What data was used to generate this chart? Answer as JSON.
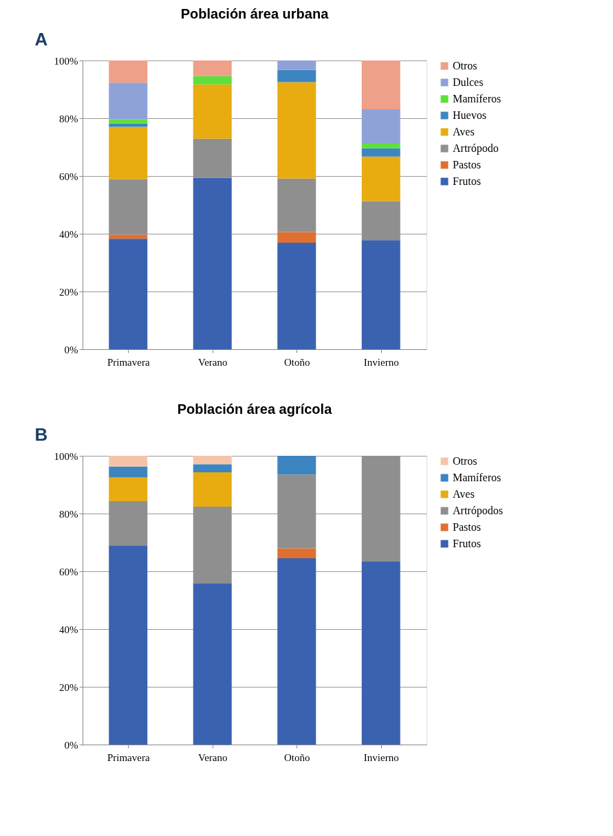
{
  "chart_data": [
    {
      "type": "bar",
      "stacked": true,
      "title": "Población área urbana",
      "annotations": [
        "A"
      ],
      "categories": [
        "Primavera",
        "Verano",
        "Otoño",
        "Invierno"
      ],
      "ylim": [
        0,
        100
      ],
      "yticks": [
        {
          "value": 0,
          "label": "0%"
        },
        {
          "value": 20,
          "label": "20%"
        },
        {
          "value": 40,
          "label": "40%"
        },
        {
          "value": 60,
          "label": "60%"
        },
        {
          "value": 80,
          "label": "80%"
        },
        {
          "value": 100,
          "label": "100%"
        }
      ],
      "grid": "y",
      "legend": "right",
      "series": [
        {
          "name": "Frutos",
          "color": "#3a62b0",
          "values": [
            38.3,
            59.4,
            36.9,
            37.8
          ]
        },
        {
          "name": "Pastos",
          "color": "#e07030",
          "values": [
            1.4,
            0,
            3.7,
            0
          ]
        },
        {
          "name": "Artrópodo",
          "color": "#8f8f8f",
          "values": [
            19.2,
            13.5,
            18.5,
            13.5
          ]
        },
        {
          "name": "Aves",
          "color": "#e8ac10",
          "values": [
            18.1,
            18.8,
            33.4,
            15.4
          ]
        },
        {
          "name": "Huevos",
          "color": "#3d85c0",
          "values": [
            1.2,
            0,
            4.2,
            2.9
          ]
        },
        {
          "name": "Mamíferos",
          "color": "#5ee03c",
          "values": [
            1.4,
            2.9,
            0,
            1.6
          ]
        },
        {
          "name": "Dulces",
          "color": "#8fa2d8",
          "values": [
            12.7,
            0,
            3.3,
            11.9
          ]
        },
        {
          "name": "Otros",
          "color": "#eea088",
          "values": [
            7.7,
            5.4,
            0,
            16.9
          ]
        }
      ]
    },
    {
      "type": "bar",
      "stacked": true,
      "title": "Población área agrícola",
      "annotations": [
        "B"
      ],
      "categories": [
        "Primavera",
        "Verano",
        "Otoño",
        "Invierno"
      ],
      "ylim": [
        0,
        100
      ],
      "yticks": [
        {
          "value": 0,
          "label": "0%"
        },
        {
          "value": 20,
          "label": "20%"
        },
        {
          "value": 40,
          "label": "40%"
        },
        {
          "value": 60,
          "label": "60%"
        },
        {
          "value": 80,
          "label": "80%"
        },
        {
          "value": 100,
          "label": "100%"
        }
      ],
      "grid": "y",
      "legend": "right",
      "series": [
        {
          "name": "Frutos",
          "color": "#3a62b0",
          "values": [
            69.0,
            55.9,
            64.5,
            63.5
          ]
        },
        {
          "name": "Pastos",
          "color": "#e07030",
          "values": [
            0,
            0,
            3.5,
            0
          ]
        },
        {
          "name": "Artrópodos",
          "color": "#8f8f8f",
          "values": [
            15.3,
            26.5,
            25.5,
            36.5
          ]
        },
        {
          "name": "Aves",
          "color": "#e8ac10",
          "values": [
            8.2,
            11.9,
            0,
            0
          ]
        },
        {
          "name": "Mamíferos",
          "color": "#3d85c0",
          "values": [
            3.8,
            2.8,
            6.5,
            0
          ]
        },
        {
          "name": "Otros",
          "color": "#f5c4a8",
          "values": [
            3.7,
            2.9,
            0,
            0
          ]
        }
      ]
    }
  ]
}
